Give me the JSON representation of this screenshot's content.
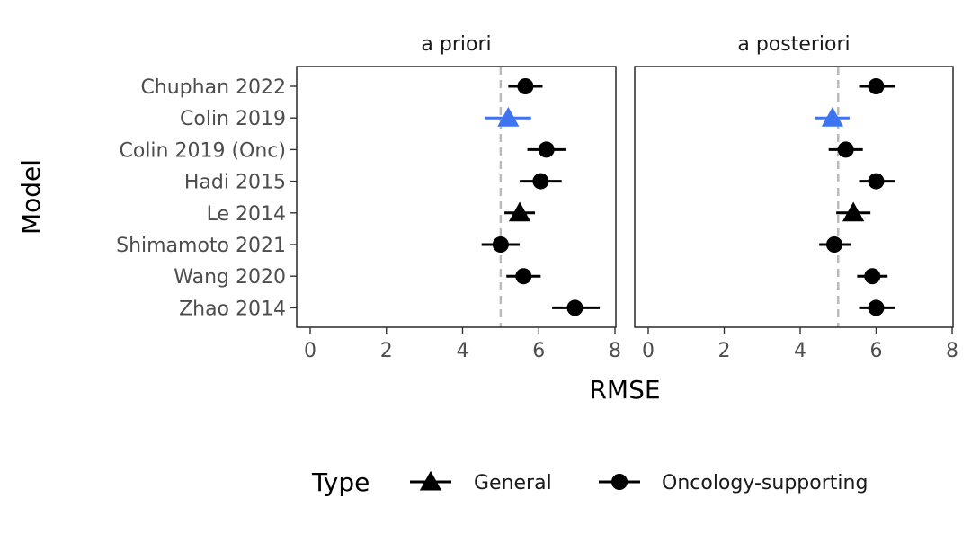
{
  "chart_data": {
    "type": "scatter",
    "xlabel": "RMSE",
    "ylabel": "Model",
    "xlim": [
      0,
      8
    ],
    "x_ticks": [
      "0",
      "2",
      "4",
      "6",
      "8"
    ],
    "reference_line": 5,
    "categories": [
      "Chuphan 2022",
      "Colin 2019",
      "Colin 2019 (Onc)",
      "Hadi 2015",
      "Le 2014",
      "Shimamoto 2021",
      "Wang 2020",
      "Zhao 2014"
    ],
    "types": [
      "Oncology-supporting",
      "General",
      "Oncology-supporting",
      "Oncology-supporting",
      "General",
      "Oncology-supporting",
      "Oncology-supporting",
      "Oncology-supporting"
    ],
    "highlight": "Colin 2019",
    "colors": {
      "default": "#000000",
      "highlight": "#3f74f0",
      "reference": "#bbbbbb"
    },
    "panels": [
      {
        "title": "a priori",
        "values": [
          5.65,
          5.2,
          6.2,
          6.05,
          5.5,
          5.0,
          5.6,
          6.95
        ],
        "lower": [
          5.2,
          4.6,
          5.7,
          5.5,
          5.1,
          4.5,
          5.15,
          6.35
        ],
        "upper": [
          6.1,
          5.8,
          6.7,
          6.6,
          5.9,
          5.5,
          6.05,
          7.6
        ]
      },
      {
        "title": "a posteriori",
        "values": [
          6.0,
          4.85,
          5.2,
          6.0,
          5.4,
          4.9,
          5.9,
          6.0
        ],
        "lower": [
          5.55,
          4.4,
          4.75,
          5.55,
          4.95,
          4.5,
          5.5,
          5.55
        ],
        "upper": [
          6.5,
          5.3,
          5.65,
          6.5,
          5.85,
          5.35,
          6.3,
          6.5
        ]
      }
    ],
    "legend": {
      "title": "Type",
      "position": "bottom",
      "items": [
        {
          "label": "General",
          "shape": "triangle"
        },
        {
          "label": "Oncology-supporting",
          "shape": "circle"
        }
      ]
    }
  }
}
